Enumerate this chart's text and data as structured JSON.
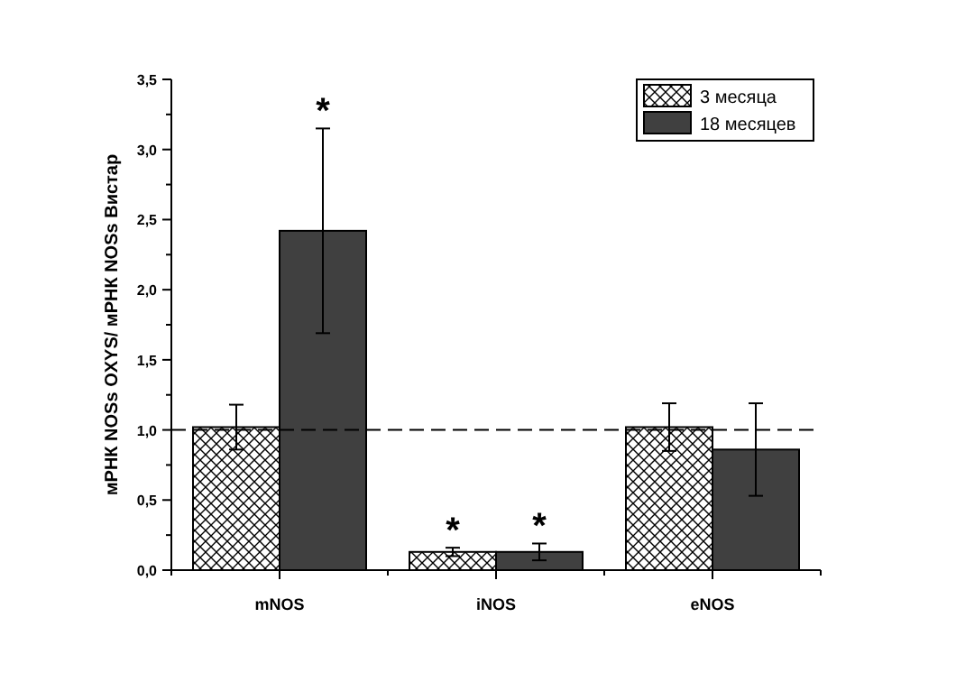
{
  "chart_data": {
    "type": "bar",
    "ylabel": "мРНК NOSs OXYS/ мРНК NOSs Вистар",
    "categories": [
      "mNOS",
      "iNOS",
      "eNOS"
    ],
    "series": [
      {
        "name": "3 месяца",
        "color": "#000000",
        "values": [
          1.02,
          0.13,
          1.02
        ],
        "errors": [
          0.16,
          0.03,
          0.17
        ]
      },
      {
        "name": "18 месяцев",
        "color": "#404040",
        "values": [
          2.42,
          0.13,
          0.86
        ],
        "errors": [
          0.73,
          0.06,
          0.33
        ]
      }
    ],
    "ylim": [
      0,
      3.5
    ],
    "yticks": [
      {
        "value": 0,
        "label": "0,0"
      },
      {
        "value": 0.25,
        "label": null
      },
      {
        "value": 0.5,
        "label": "0,5"
      },
      {
        "value": 0.75,
        "label": null
      },
      {
        "value": 1,
        "label": "1,0"
      },
      {
        "value": 1.25,
        "label": null
      },
      {
        "value": 1.5,
        "label": "1,5"
      },
      {
        "value": 1.75,
        "label": null
      },
      {
        "value": 2,
        "label": "2,0"
      },
      {
        "value": 2.25,
        "label": null
      },
      {
        "value": 2.5,
        "label": "2,5"
      },
      {
        "value": 2.75,
        "label": null
      },
      {
        "value": 3,
        "label": "3,0"
      },
      {
        "value": 3.25,
        "label": null
      },
      {
        "value": 3.5,
        "label": "3,5"
      }
    ],
    "ref_lines": [
      {
        "axis": "y",
        "value": 1,
        "line_style": "dashed",
        "color": "#000000"
      }
    ],
    "annotations": [
      {
        "text": "*",
        "x": "mNOS",
        "y": 2.42
      },
      {
        "text": "*",
        "x": "iNOS",
        "y": 0.16
      },
      {
        "text": "*",
        "x": "iNOS",
        "y": 0.19
      }
    ],
    "legend": "top right",
    "grid": false
  }
}
